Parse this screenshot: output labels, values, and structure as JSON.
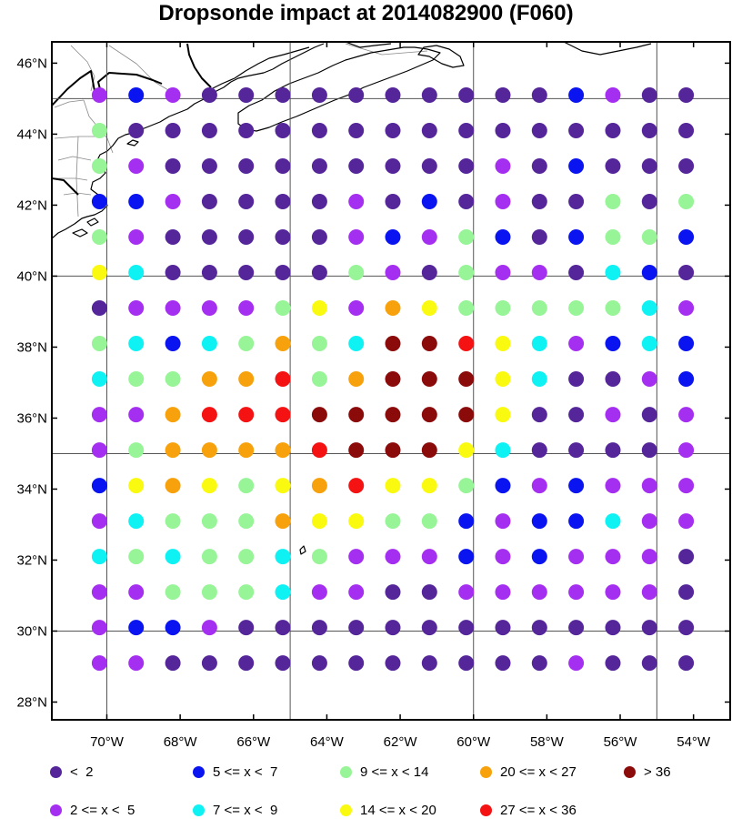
{
  "title": "Dropsonde impact at 2014082900 (F060)",
  "map": {
    "lon_range": [
      -71.5,
      -53
    ],
    "lat_range": [
      27.5,
      46.6
    ],
    "lat_ticks": [
      {
        "value": 46,
        "label": "46°N"
      },
      {
        "value": 44,
        "label": "44°N"
      },
      {
        "value": 42,
        "label": "42°N"
      },
      {
        "value": 40,
        "label": "40°N"
      },
      {
        "value": 38,
        "label": "38°N"
      },
      {
        "value": 36,
        "label": "36°N"
      },
      {
        "value": 34,
        "label": "34°N"
      },
      {
        "value": 32,
        "label": "32°N"
      },
      {
        "value": 30,
        "label": "30°N"
      },
      {
        "value": 28,
        "label": "28°N"
      }
    ],
    "lon_ticks": [
      {
        "value": -70,
        "label": "70°W"
      },
      {
        "value": -68,
        "label": "68°W"
      },
      {
        "value": -66,
        "label": "66°W"
      },
      {
        "value": -64,
        "label": "64°W"
      },
      {
        "value": -62,
        "label": "62°W"
      },
      {
        "value": -60,
        "label": "60°W"
      },
      {
        "value": -58,
        "label": "58°W"
      },
      {
        "value": -56,
        "label": "56°W"
      },
      {
        "value": -54,
        "label": "54°W"
      }
    ],
    "gridlines": {
      "lat": [
        40,
        35,
        30,
        45
      ],
      "lon": [
        -70,
        -65,
        -60,
        -55
      ]
    }
  },
  "chart_data": {
    "type": "scatter",
    "title": "Dropsonde impact at 2014082900 (F060)",
    "xlabel": "",
    "ylabel": "",
    "grid": true,
    "legend_position": "bottom",
    "categories": [
      {
        "code": 1,
        "label": "<  2",
        "color": "#55259a"
      },
      {
        "code": 2,
        "label": "2 <= x <  5",
        "color": "#a52ff0"
      },
      {
        "code": 3,
        "label": "5 <= x <  7",
        "color": "#0a14f0"
      },
      {
        "code": 4,
        "label": "7 <= x <  9",
        "color": "#0ef2f4"
      },
      {
        "code": 5,
        "label": "9 <= x < 14",
        "color": "#97f497"
      },
      {
        "code": 6,
        "label": "14 <= x < 20",
        "color": "#fafa10"
      },
      {
        "code": 7,
        "label": "20 <= x < 27",
        "color": "#f7a20c"
      },
      {
        "code": 8,
        "label": "27 <= x < 36",
        "color": "#f41212"
      },
      {
        "code": 9,
        "label": "> 36",
        "color": "#8b0a0a"
      }
    ],
    "x": [
      -70.2,
      -69.2,
      -68.2,
      -67.2,
      -66.2,
      -65.2,
      -64.2,
      -63.2,
      -62.2,
      -61.2,
      -60.2,
      -59.2,
      -58.2,
      -57.2,
      -56.2,
      -55.2,
      -54.2
    ],
    "y": [
      45.1,
      44.1,
      43.1,
      42.1,
      41.1,
      40.1,
      39.1,
      38.1,
      37.1,
      36.1,
      35.1,
      34.1,
      33.1,
      32.1,
      31.1,
      30.1,
      29.1
    ],
    "rows": [
      [
        2,
        3,
        2,
        1,
        1,
        1,
        1,
        1,
        1,
        1,
        1,
        1,
        1,
        3,
        2,
        1,
        1
      ],
      [
        5,
        1,
        1,
        1,
        1,
        1,
        1,
        1,
        1,
        1,
        1,
        1,
        1,
        1,
        1,
        1,
        1
      ],
      [
        5,
        2,
        1,
        1,
        1,
        1,
        1,
        1,
        1,
        1,
        1,
        2,
        1,
        3,
        1,
        1,
        1
      ],
      [
        3,
        3,
        2,
        1,
        1,
        1,
        1,
        2,
        1,
        3,
        1,
        2,
        1,
        1,
        5,
        1,
        5
      ],
      [
        5,
        2,
        1,
        1,
        1,
        1,
        1,
        2,
        3,
        2,
        5,
        3,
        1,
        3,
        5,
        5,
        3
      ],
      [
        6,
        4,
        1,
        1,
        1,
        1,
        1,
        5,
        2,
        1,
        5,
        2,
        2,
        1,
        4,
        3,
        1
      ],
      [
        1,
        2,
        2,
        2,
        2,
        5,
        6,
        2,
        7,
        6,
        5,
        5,
        5,
        5,
        5,
        4,
        2
      ],
      [
        5,
        4,
        3,
        4,
        5,
        7,
        5,
        4,
        9,
        9,
        8,
        6,
        4,
        2,
        3,
        4,
        3
      ],
      [
        4,
        5,
        5,
        7,
        7,
        8,
        5,
        7,
        9,
        9,
        9,
        6,
        4,
        1,
        1,
        2,
        3
      ],
      [
        2,
        2,
        7,
        8,
        8,
        8,
        9,
        9,
        9,
        9,
        9,
        6,
        1,
        1,
        2,
        1,
        2
      ],
      [
        2,
        5,
        7,
        7,
        7,
        7,
        8,
        9,
        9,
        9,
        6,
        4,
        1,
        1,
        1,
        1,
        2
      ],
      [
        3,
        6,
        7,
        6,
        5,
        6,
        7,
        8,
        6,
        6,
        5,
        3,
        2,
        3,
        2,
        2,
        2
      ],
      [
        2,
        4,
        5,
        5,
        5,
        7,
        6,
        6,
        5,
        5,
        3,
        2,
        3,
        3,
        4,
        2,
        2
      ],
      [
        4,
        5,
        4,
        5,
        5,
        4,
        5,
        2,
        2,
        2,
        3,
        2,
        3,
        2,
        2,
        2,
        1
      ],
      [
        2,
        2,
        5,
        5,
        5,
        4,
        2,
        2,
        1,
        1,
        2,
        2,
        2,
        2,
        2,
        2,
        1
      ],
      [
        2,
        3,
        3,
        2,
        1,
        1,
        1,
        1,
        1,
        1,
        1,
        1,
        1,
        1,
        1,
        1,
        1
      ],
      [
        2,
        2,
        1,
        1,
        1,
        1,
        1,
        1,
        1,
        1,
        1,
        1,
        1,
        2,
        1,
        1,
        1
      ]
    ]
  },
  "legend": {
    "items": [
      {
        "label": "<  2",
        "color": "#55259a"
      },
      {
        "label": "5 <= x <  7",
        "color": "#0a14f0"
      },
      {
        "label": "9 <= x < 14",
        "color": "#97f497"
      },
      {
        "label": "20 <= x < 27",
        "color": "#f7a20c"
      },
      {
        "label": "> 36",
        "color": "#8b0a0a"
      },
      {
        "label": "2 <= x <  5",
        "color": "#a52ff0"
      },
      {
        "label": "7 <= x <  9",
        "color": "#0ef2f4"
      },
      {
        "label": "14 <= x < 20",
        "color": "#fafa10"
      },
      {
        "label": "27 <= x < 36",
        "color": "#f41212"
      }
    ]
  }
}
